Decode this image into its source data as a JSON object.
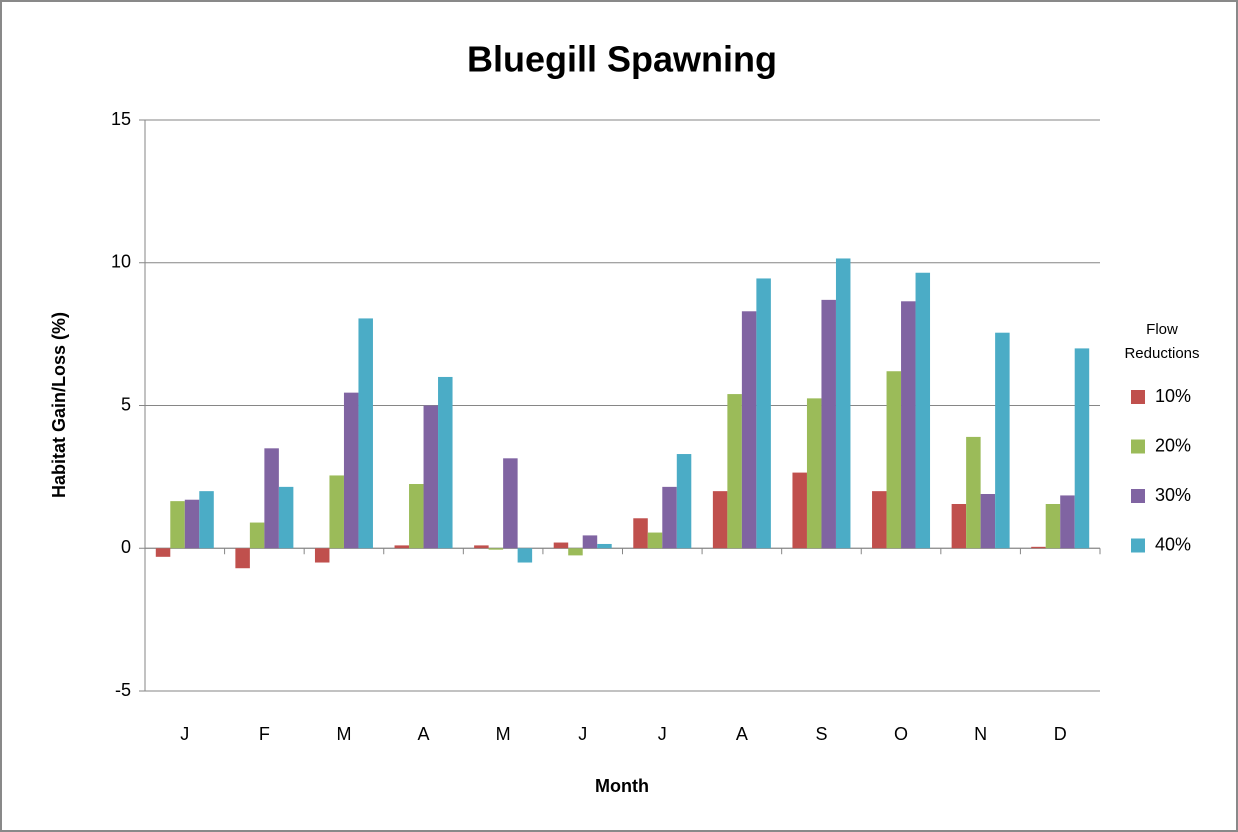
{
  "chart_data": {
    "type": "bar",
    "title": "Bluegill Spawning",
    "x_label": "Month",
    "y_label": "Habitat Gain/Loss (%)",
    "categories": [
      "J",
      "F",
      "M",
      "A",
      "M",
      "J",
      "J",
      "A",
      "S",
      "O",
      "N",
      "D"
    ],
    "legend_title": "Flow Reductions",
    "legend": "right",
    "grid": true,
    "ylim": [
      -5,
      15
    ],
    "yticks": [
      -5,
      0,
      5,
      10,
      15
    ],
    "series": [
      {
        "name": "10%",
        "color": "#c0504d",
        "values": [
          -0.3,
          -0.7,
          -0.5,
          0.1,
          0.1,
          0.2,
          1.05,
          2.0,
          2.65,
          2.0,
          1.55,
          0.05
        ]
      },
      {
        "name": "20%",
        "color": "#9bbb59",
        "values": [
          1.65,
          0.9,
          2.55,
          2.25,
          -0.05,
          -0.25,
          0.55,
          5.4,
          5.25,
          6.2,
          3.9,
          1.55
        ]
      },
      {
        "name": "30%",
        "color": "#8064a2",
        "values": [
          1.7,
          3.5,
          5.45,
          5.0,
          3.15,
          0.45,
          2.15,
          8.3,
          8.7,
          8.65,
          1.9,
          1.85
        ]
      },
      {
        "name": "40%",
        "color": "#4bacc6",
        "values": [
          2.0,
          2.15,
          8.05,
          6.0,
          -0.5,
          0.15,
          3.3,
          9.45,
          10.15,
          9.65,
          7.55,
          7.0
        ]
      }
    ]
  }
}
